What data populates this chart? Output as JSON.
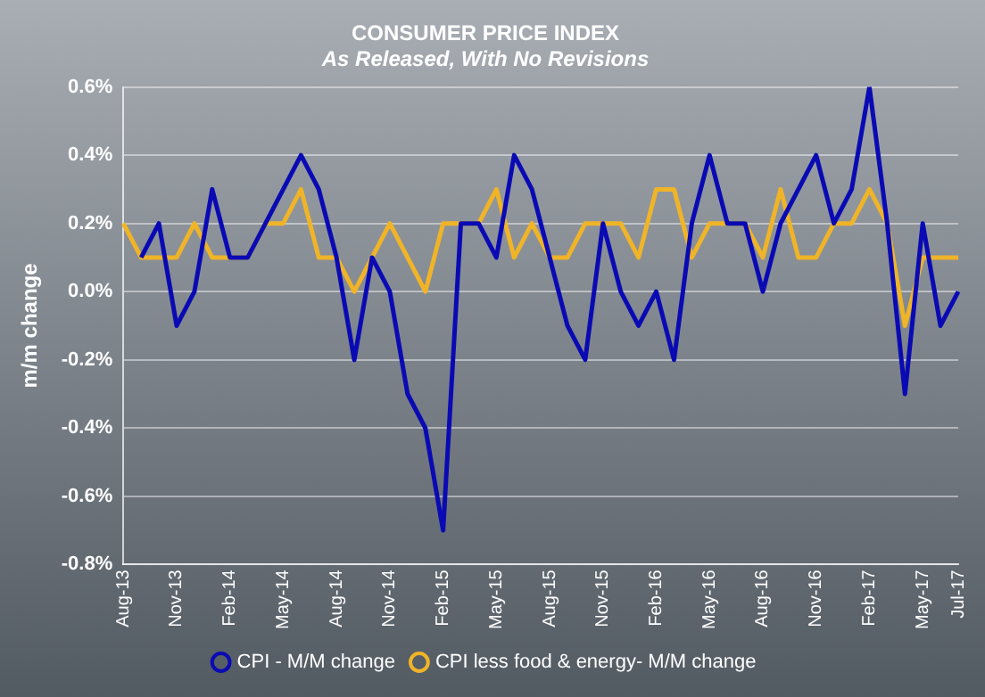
{
  "chart_data": {
    "type": "line",
    "title": "CONSUMER PRICE INDEX",
    "subtitle": "As Released, With No Revisions",
    "ylabel": "m/m change",
    "categories": [
      "Aug-13",
      null,
      null,
      "Nov-13",
      null,
      null,
      "Feb-14",
      null,
      null,
      "May-14",
      null,
      null,
      "Aug-14",
      null,
      null,
      "Nov-14",
      null,
      null,
      "Feb-15",
      null,
      null,
      "May-15",
      null,
      null,
      "Aug-15",
      null,
      null,
      "Nov-15",
      null,
      null,
      "Feb-16",
      null,
      null,
      "May-16",
      null,
      null,
      "Aug-16",
      null,
      null,
      "Nov-16",
      null,
      null,
      "Feb-17",
      null,
      null,
      "May-17",
      null,
      "Jul-17"
    ],
    "series": [
      {
        "name": "CPI - M/M change",
        "color": "#0a0ab4",
        "values": [
          null,
          0.1,
          0.2,
          -0.1,
          0.0,
          0.3,
          0.1,
          0.1,
          0.2,
          0.3,
          0.4,
          0.3,
          0.1,
          -0.2,
          0.1,
          0.0,
          -0.3,
          -0.4,
          -0.7,
          0.2,
          0.2,
          0.1,
          0.4,
          0.3,
          0.1,
          -0.1,
          -0.2,
          0.2,
          0.0,
          -0.1,
          0.0,
          -0.2,
          0.2,
          0.4,
          0.2,
          0.2,
          0.0,
          0.2,
          0.3,
          0.4,
          0.2,
          0.3,
          0.6,
          0.2,
          -0.3,
          0.2,
          -0.1,
          0.0
        ]
      },
      {
        "name": "CPI less food & energy- M/M change",
        "color": "#f0b428",
        "values": [
          0.2,
          0.1,
          0.1,
          0.1,
          0.2,
          0.1,
          0.1,
          0.1,
          0.2,
          0.2,
          0.3,
          0.1,
          0.1,
          0.0,
          0.1,
          0.2,
          0.1,
          0.0,
          0.2,
          0.2,
          0.2,
          0.3,
          0.1,
          0.2,
          0.1,
          0.1,
          0.2,
          0.2,
          0.2,
          0.1,
          0.3,
          0.3,
          0.1,
          0.2,
          0.2,
          0.2,
          0.1,
          0.3,
          0.1,
          0.1,
          0.2,
          0.2,
          0.3,
          0.2,
          -0.1,
          0.1,
          0.1,
          0.1
        ]
      }
    ],
    "ylim": [
      -0.8,
      0.6
    ],
    "yticks": [
      {
        "value": -0.8,
        "label": "-0.8%"
      },
      {
        "value": -0.6,
        "label": "-0.6%"
      },
      {
        "value": -0.4,
        "label": "-0.4%"
      },
      {
        "value": -0.2,
        "label": "-0.2%"
      },
      {
        "value": 0,
        "label": "0.0%"
      },
      {
        "value": 0.2,
        "label": "0.2%"
      },
      {
        "value": 0.4,
        "label": "0.4%"
      },
      {
        "value": 0.6,
        "label": "0.6%"
      }
    ],
    "grid": "y",
    "legend": "bottom",
    "marker": "none",
    "line_style": "solid"
  }
}
